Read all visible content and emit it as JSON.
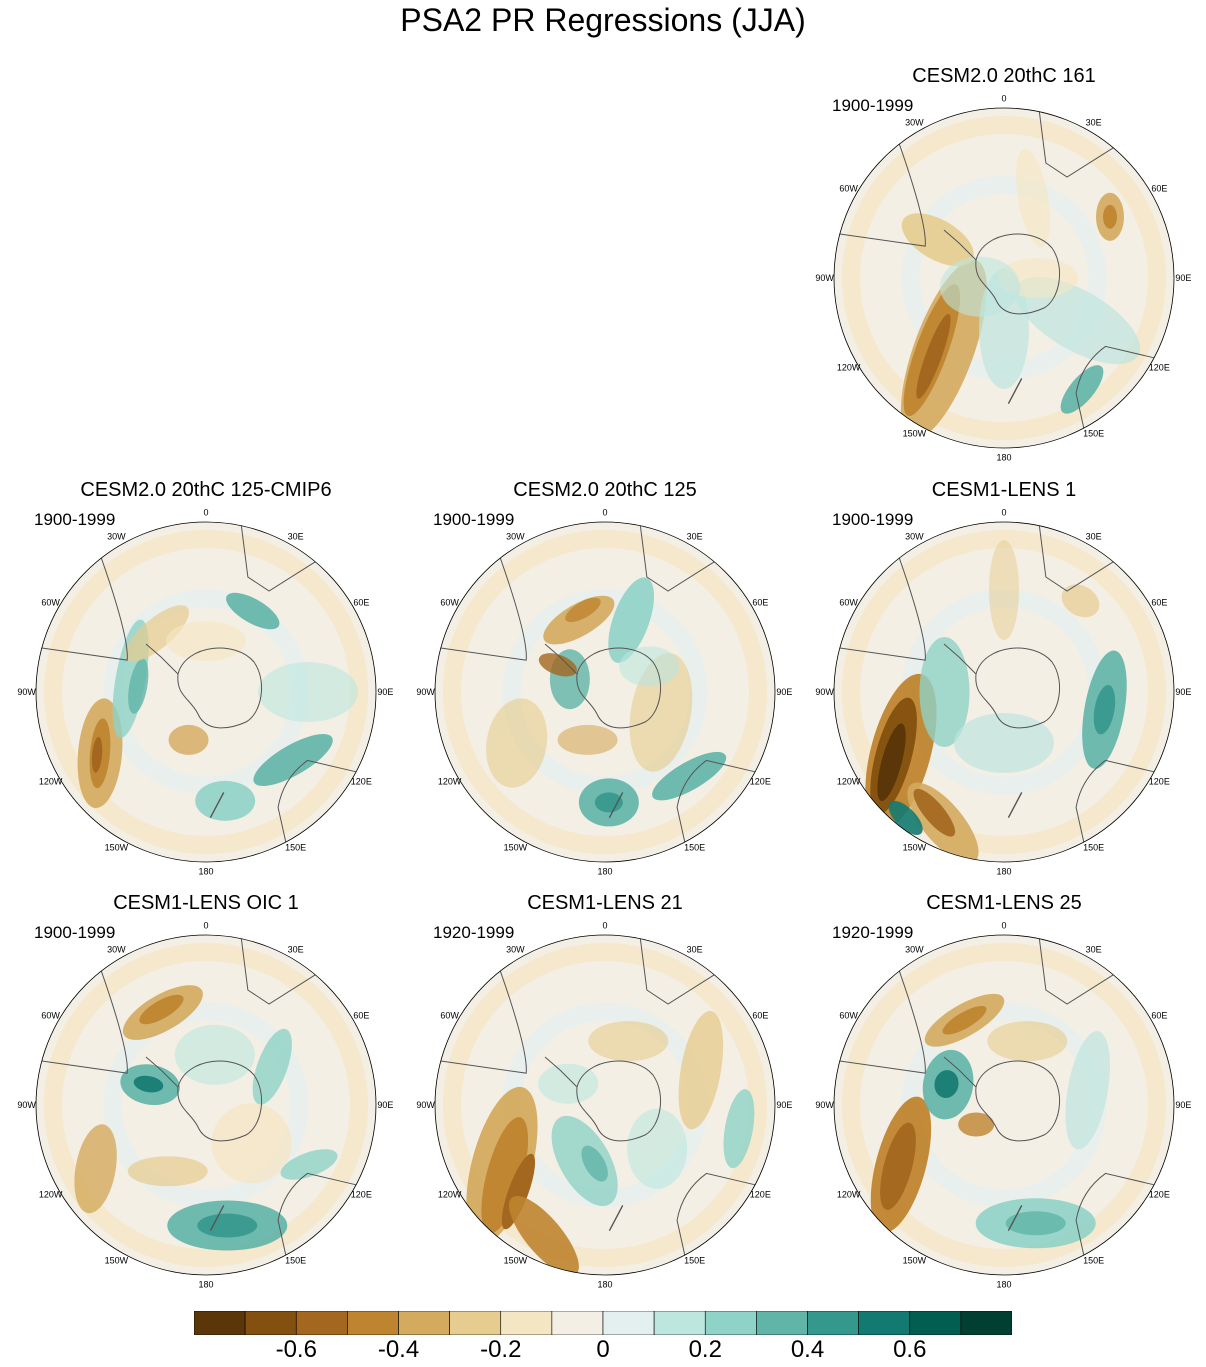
{
  "title": "PSA2 PR Regressions (JJA)",
  "lon_labels": [
    "0",
    "30E",
    "60E",
    "90E",
    "120E",
    "150E",
    "180",
    "150W",
    "120W",
    "90W",
    "60W",
    "30W"
  ],
  "panels": [
    {
      "id": "p1",
      "title": "CESM2.0 20thC 161",
      "period": "1900-1999",
      "variant": "a"
    },
    {
      "id": "p2",
      "title": "CESM2.0 20thC 125-CMIP6",
      "period": "1900-1999",
      "variant": "b"
    },
    {
      "id": "p3",
      "title": "CESM2.0 20thC 125",
      "period": "1900-1999",
      "variant": "c"
    },
    {
      "id": "p4",
      "title": "CESM1-LENS 1",
      "period": "1900-1999",
      "variant": "d"
    },
    {
      "id": "p5",
      "title": "CESM1-LENS OIC 1",
      "period": "1900-1999",
      "variant": "e"
    },
    {
      "id": "p6",
      "title": "CESM1-LENS 21",
      "period": "1920-1999",
      "variant": "f"
    },
    {
      "id": "p7",
      "title": "CESM1-LENS 25",
      "period": "1920-1999",
      "variant": "g"
    }
  ],
  "colorbar": {
    "colors": [
      "#5a3608",
      "#84500f",
      "#a3671f",
      "#bf842f",
      "#d4aa5e",
      "#e6cc8e",
      "#f5e6c3",
      "#f4efe4",
      "#e4f0ef",
      "#bde6df",
      "#8fd2c7",
      "#60b4a8",
      "#35988d",
      "#137a71",
      "#035e52",
      "#023f33"
    ],
    "tick_values": [
      -0.6,
      -0.4,
      -0.2,
      0,
      0.2,
      0.4,
      0.6
    ],
    "tick_labels": [
      "-0.6",
      "-0.4",
      "-0.2",
      "0",
      "0.2",
      "0.4",
      "0.6"
    ]
  }
}
